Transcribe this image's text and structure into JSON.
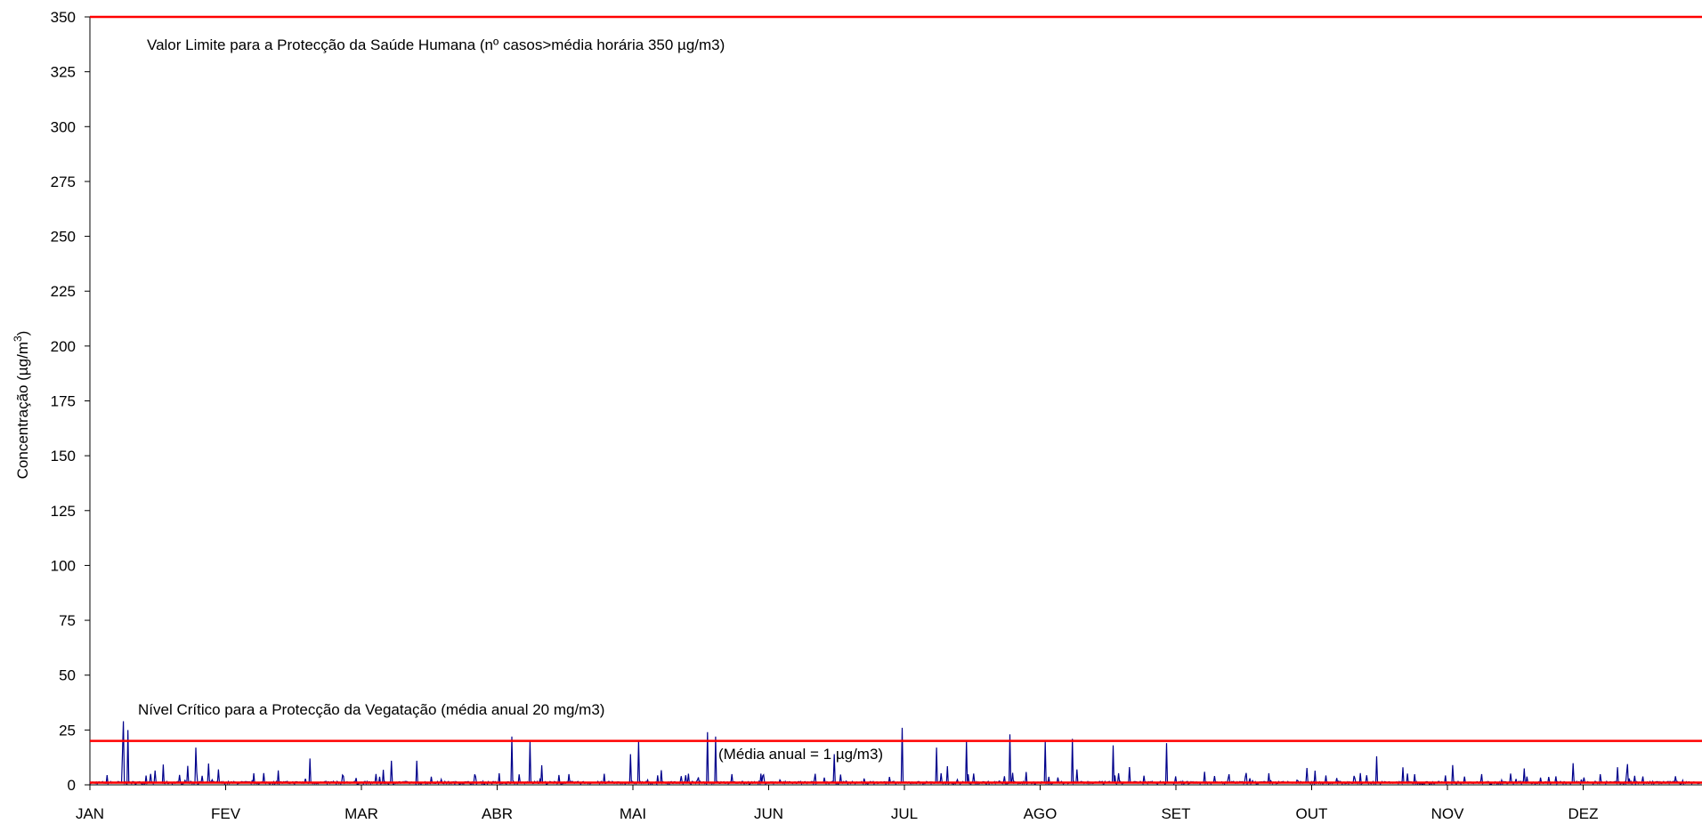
{
  "chart_data": {
    "type": "line",
    "title": "",
    "xlabel": "",
    "ylabel": "Concentração (µg/m³)",
    "ylabel_parts": {
      "main": "Concentração (µg/m",
      "sup": "3",
      "end": ")"
    },
    "ylim": [
      0,
      350
    ],
    "yticks": [
      0,
      25,
      50,
      75,
      100,
      125,
      150,
      175,
      200,
      225,
      250,
      275,
      300,
      325,
      350
    ],
    "months": [
      "JAN",
      "FEV",
      "MAR",
      "ABR",
      "MAI",
      "JUN",
      "JUL",
      "AGO",
      "SET",
      "OUT",
      "NOV",
      "DEZ"
    ],
    "grid": false,
    "legend": "none",
    "series_color": "#00008B",
    "reference_lines": [
      {
        "label": "Valor Limite para a Protecção da Saúde Humana (nº casos>média horária 350 µg/m3)",
        "value": 350,
        "color": "#FF0000"
      },
      {
        "label": "Nível Crítico para a Protecção da Vegatação (média anual 20 mg/m3)",
        "value": 20,
        "color": "#FF0000"
      },
      {
        "label": "(Média anual = 1 µg/m3)",
        "value": 1,
        "color": "#FF0000"
      }
    ],
    "peaks": [
      {
        "month_pos": 0.24,
        "value": 15
      },
      {
        "month_pos": 0.25,
        "value": 29
      },
      {
        "month_pos": 0.28,
        "value": 25
      },
      {
        "month_pos": 0.45,
        "value": 5
      },
      {
        "month_pos": 0.78,
        "value": 17
      },
      {
        "month_pos": 0.95,
        "value": 7
      },
      {
        "month_pos": 1.62,
        "value": 12
      },
      {
        "month_pos": 2.22,
        "value": 11
      },
      {
        "month_pos": 2.41,
        "value": 11
      },
      {
        "month_pos": 3.11,
        "value": 22
      },
      {
        "month_pos": 3.24,
        "value": 20
      },
      {
        "month_pos": 3.98,
        "value": 14
      },
      {
        "month_pos": 4.04,
        "value": 20
      },
      {
        "month_pos": 4.55,
        "value": 24
      },
      {
        "month_pos": 4.61,
        "value": 22
      },
      {
        "month_pos": 5.48,
        "value": 14
      },
      {
        "month_pos": 5.98,
        "value": 26
      },
      {
        "month_pos": 6.24,
        "value": 17
      },
      {
        "month_pos": 6.46,
        "value": 20
      },
      {
        "month_pos": 6.78,
        "value": 23
      },
      {
        "month_pos": 7.04,
        "value": 20
      },
      {
        "month_pos": 7.24,
        "value": 21
      },
      {
        "month_pos": 7.54,
        "value": 18
      },
      {
        "month_pos": 7.93,
        "value": 19
      },
      {
        "month_pos": 9.48,
        "value": 13
      },
      {
        "month_pos": 9.67,
        "value": 8
      },
      {
        "month_pos": 10.04,
        "value": 9
      }
    ]
  }
}
